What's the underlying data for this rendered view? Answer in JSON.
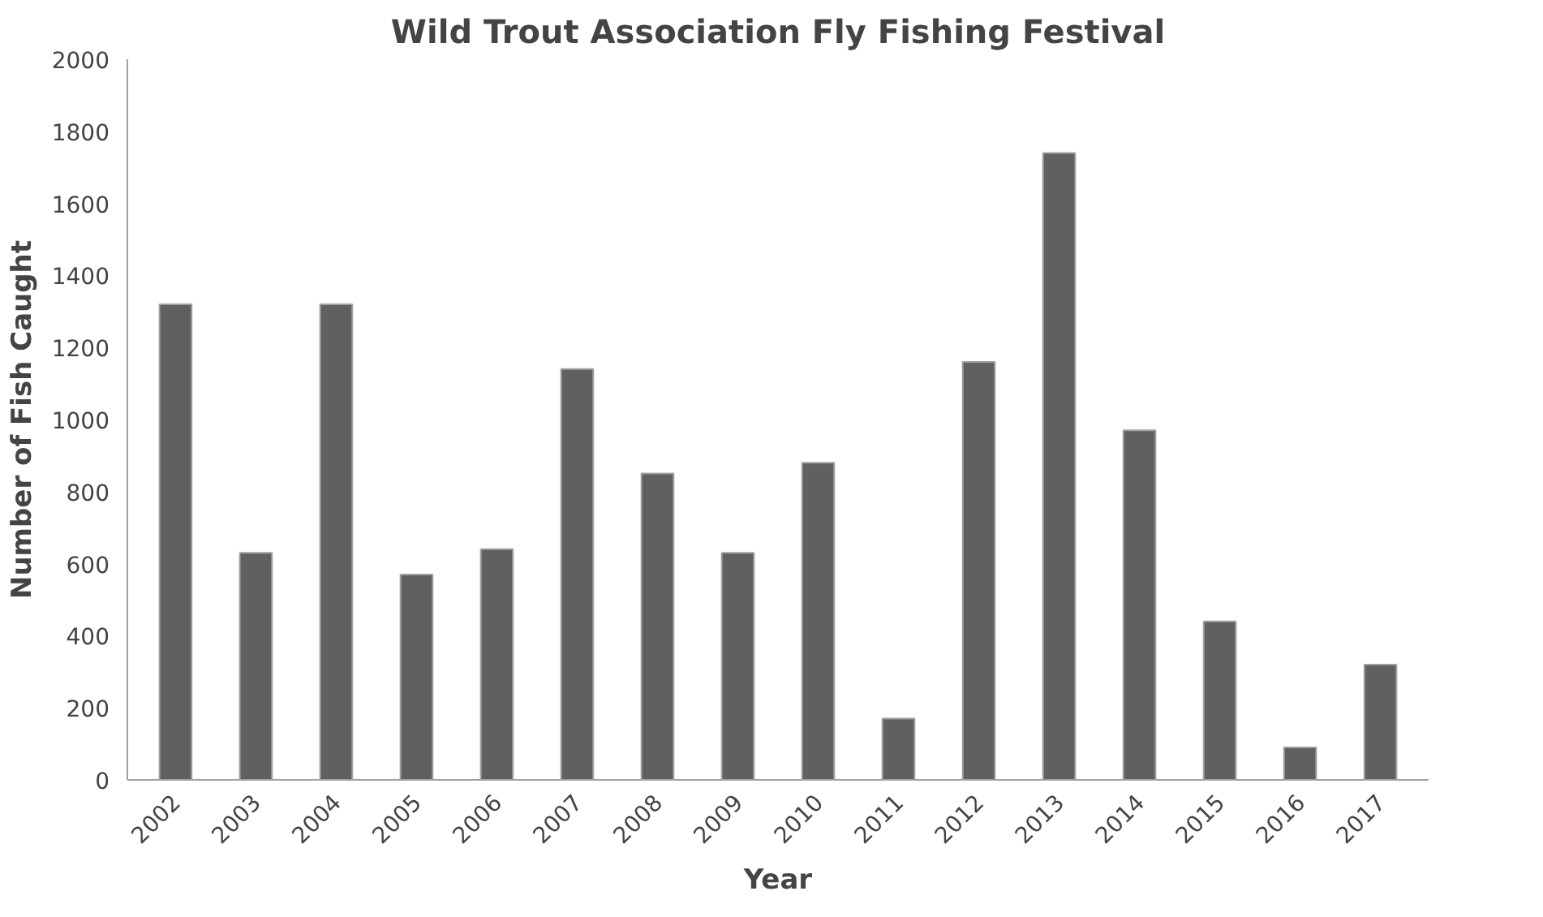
{
  "chart_data": {
    "type": "bar",
    "title": "Wild Trout Association Fly Fishing Festival",
    "xlabel": "Year",
    "ylabel": "Number of Fish Caught",
    "categories": [
      "2002",
      "2003",
      "2004",
      "2005",
      "2006",
      "2007",
      "2008",
      "2009",
      "2010",
      "2011",
      "2012",
      "2013",
      "2014",
      "2015",
      "2016",
      "2017"
    ],
    "values": [
      1320,
      630,
      1320,
      570,
      640,
      1140,
      850,
      630,
      880,
      170,
      1160,
      1740,
      970,
      440,
      90,
      320
    ],
    "color": "#606060",
    "ylim": [
      0,
      2000
    ],
    "yticks": [
      0,
      200,
      400,
      600,
      800,
      1000,
      1200,
      1400,
      1600,
      1800,
      2000
    ],
    "grid": false
  }
}
